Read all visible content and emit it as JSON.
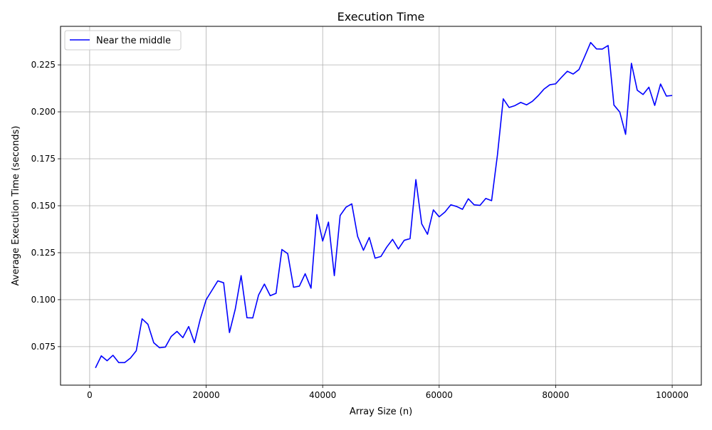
{
  "chart_data": {
    "type": "line",
    "title": "Execution Time",
    "xlabel": "Array Size (n)",
    "ylabel": "Average Execution Time (seconds)",
    "xlim": [
      -5000,
      105000
    ],
    "ylim": [
      0.0545,
      0.2455
    ],
    "x_ticks": [
      0,
      20000,
      40000,
      60000,
      80000,
      100000
    ],
    "x_tick_labels": [
      "0",
      "20000",
      "40000",
      "60000",
      "80000",
      "100000"
    ],
    "y_ticks": [
      0.075,
      0.1,
      0.125,
      0.15,
      0.175,
      0.2,
      0.225
    ],
    "y_tick_labels": [
      "0.075",
      "0.100",
      "0.125",
      "0.150",
      "0.175",
      "0.200",
      "0.225"
    ],
    "grid": true,
    "legend_position": "top-left",
    "series": [
      {
        "name": "Near the middle",
        "color": "#0000ff",
        "x": [
          1000,
          2000,
          3000,
          4000,
          5000,
          6000,
          7000,
          8000,
          9000,
          10000,
          11000,
          12000,
          13000,
          14000,
          15000,
          16000,
          17000,
          18000,
          19000,
          20000,
          21000,
          22000,
          23000,
          24000,
          25000,
          26000,
          27000,
          28000,
          29000,
          30000,
          31000,
          32000,
          33000,
          34000,
          35000,
          36000,
          37000,
          38000,
          39000,
          40000,
          41000,
          42000,
          43000,
          44000,
          45000,
          46000,
          47000,
          48000,
          49000,
          50000,
          51000,
          52000,
          53000,
          54000,
          55000,
          56000,
          57000,
          58000,
          59000,
          60000,
          61000,
          62000,
          63000,
          64000,
          65000,
          66000,
          67000,
          68000,
          69000,
          70000,
          71000,
          72000,
          73000,
          74000,
          75000,
          76000,
          77000,
          78000,
          79000,
          80000,
          81000,
          82000,
          83000,
          84000,
          85000,
          86000,
          87000,
          88000,
          89000,
          90000,
          91000,
          92000,
          93000,
          94000,
          95000,
          96000,
          97000,
          98000,
          99000,
          100000
        ],
        "y": [
          0.0637,
          0.0701,
          0.0675,
          0.0704,
          0.0665,
          0.0665,
          0.0689,
          0.0728,
          0.0898,
          0.0869,
          0.0771,
          0.0744,
          0.0748,
          0.0804,
          0.0831,
          0.0798,
          0.0857,
          0.0771,
          0.0898,
          0.1,
          0.105,
          0.11,
          0.109,
          0.0825,
          0.095,
          0.1128,
          0.0904,
          0.0903,
          0.1025,
          0.1083,
          0.1021,
          0.1034,
          0.1267,
          0.1245,
          0.1066,
          0.1072,
          0.1138,
          0.1061,
          0.1453,
          0.1312,
          0.1413,
          0.1128,
          0.1448,
          0.1492,
          0.151,
          0.1337,
          0.1263,
          0.1331,
          0.1221,
          0.123,
          0.128,
          0.1321,
          0.127,
          0.1316,
          0.1325,
          0.1639,
          0.1404,
          0.1348,
          0.1478,
          0.1441,
          0.1467,
          0.1505,
          0.1496,
          0.1481,
          0.1537,
          0.1505,
          0.1502,
          0.1539,
          0.1527,
          0.177,
          0.2069,
          0.2023,
          0.2033,
          0.205,
          0.2037,
          0.2056,
          0.2086,
          0.2121,
          0.2144,
          0.2149,
          0.2184,
          0.2216,
          0.2201,
          0.2225,
          0.2296,
          0.2369,
          0.2335,
          0.2334,
          0.2353,
          0.2036,
          0.1999,
          0.188,
          0.2258,
          0.2115,
          0.2092,
          0.2131,
          0.2034,
          0.2148,
          0.2084,
          0.2087
        ]
      }
    ]
  }
}
